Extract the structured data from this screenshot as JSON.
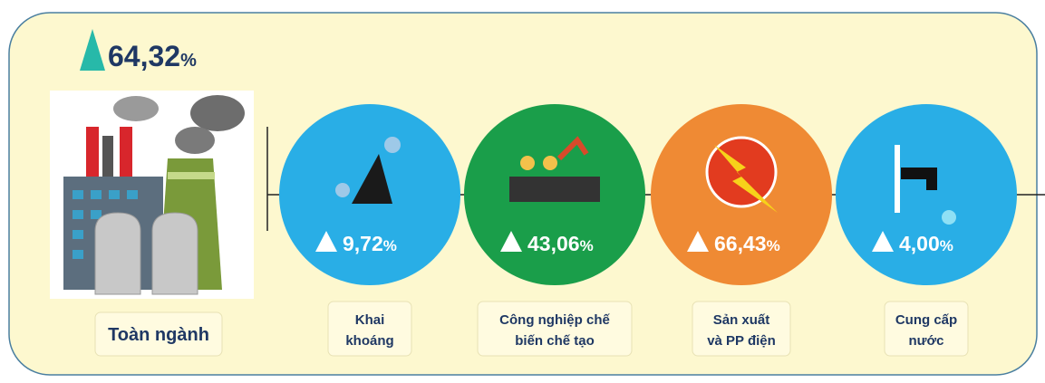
{
  "total": {
    "value": "64,32",
    "unit": "%",
    "label": "Toàn ngành"
  },
  "sectors": [
    {
      "value": "9,72",
      "unit": "%",
      "label_lines": [
        "Khai",
        "khoáng"
      ],
      "color": "#29aee6"
    },
    {
      "value": "43,06",
      "unit": "%",
      "label_lines": [
        "Công nghiệp chế",
        "biến chế tạo"
      ],
      "color": "#1a9e4a"
    },
    {
      "value": "66,43",
      "unit": "%",
      "label_lines": [
        "Sản xuất",
        "và PP điện"
      ],
      "color": "#ef8a34"
    },
    {
      "value": "4,00",
      "unit": "%",
      "label_lines": [
        "Cung cấp",
        "nước"
      ],
      "color": "#29aee6"
    }
  ]
}
